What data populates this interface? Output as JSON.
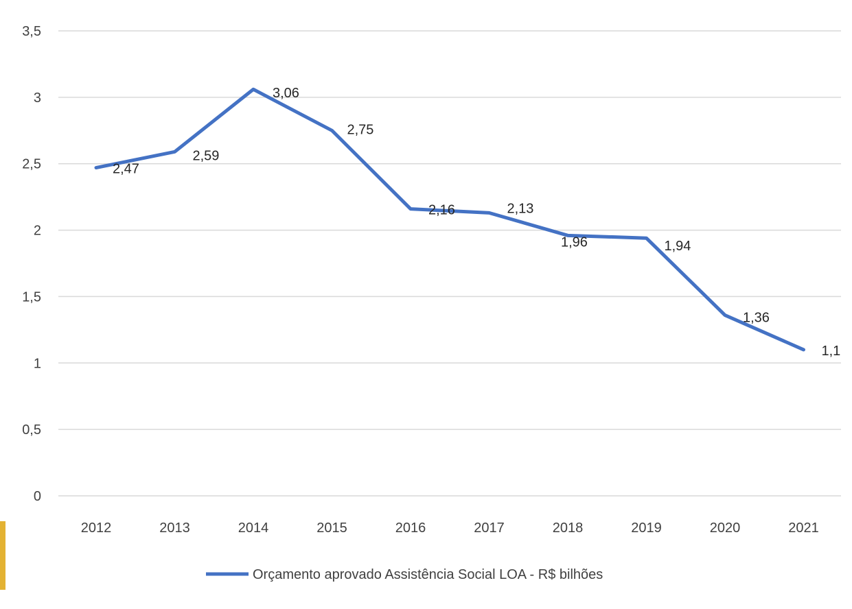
{
  "chart_data": {
    "type": "line",
    "title": "",
    "xlabel": "",
    "ylabel": "",
    "categories": [
      "2012",
      "2013",
      "2014",
      "2015",
      "2016",
      "2017",
      "2018",
      "2019",
      "2020",
      "2021"
    ],
    "series": [
      {
        "name": "Orçamento aprovado Assistência Social LOA - R$ bilhões",
        "values": [
          2.47,
          2.59,
          3.06,
          2.75,
          2.16,
          2.13,
          1.96,
          1.94,
          1.36,
          1.1
        ],
        "data_labels": [
          "2,47",
          "2,59",
          "3,06",
          "2,75",
          "2,16",
          "2,13",
          "1,96",
          "1,94",
          "1,36",
          "1,1"
        ],
        "color": "#4472c4"
      }
    ],
    "ylim": [
      0,
      3.5
    ],
    "yticks": [
      0,
      0.5,
      1,
      1.5,
      2,
      2.5,
      3,
      3.5
    ],
    "ytick_labels": [
      "0",
      "0,5",
      "1",
      "1,5",
      "2",
      "2,5",
      "3",
      "3,5"
    ],
    "grid": true,
    "legend_position": "bottom",
    "gridline_color": "#d9d9d9"
  }
}
